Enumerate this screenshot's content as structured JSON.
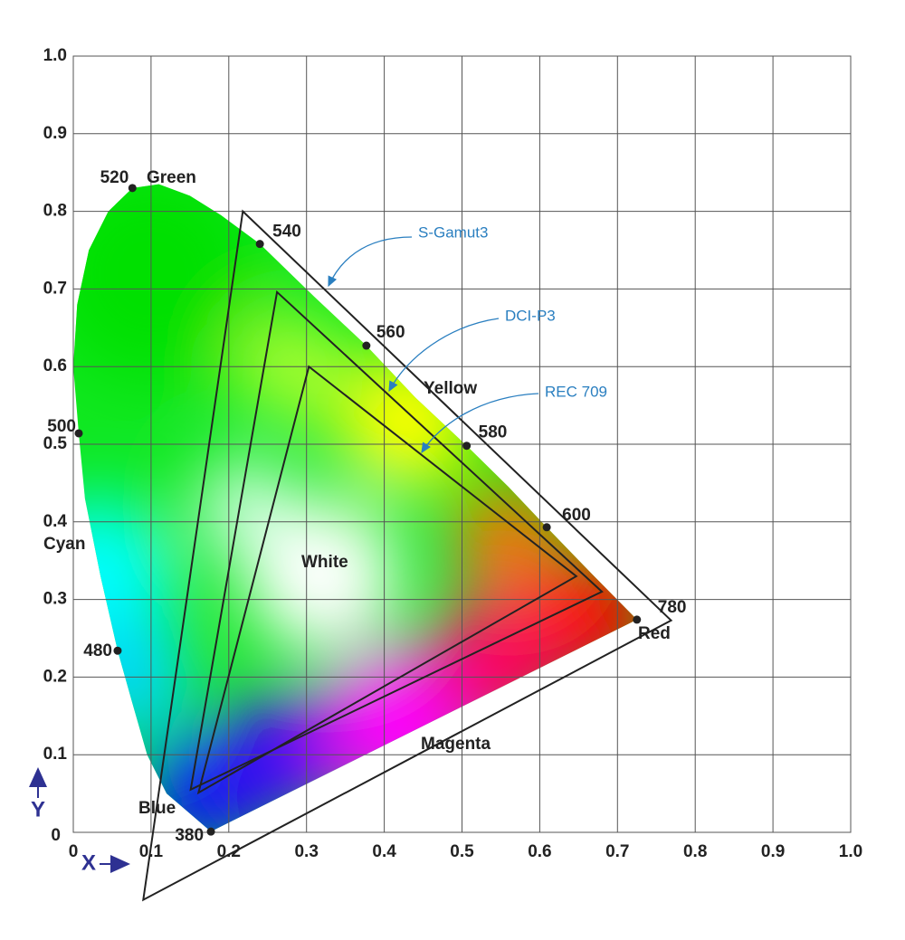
{
  "chart_data": {
    "type": "chromaticity",
    "x_label": "X",
    "y_label": "Y",
    "xlim": [
      0,
      1
    ],
    "ylim": [
      0,
      1
    ],
    "xticks": [
      0,
      0.1,
      0.2,
      0.3,
      0.4,
      0.5,
      0.6,
      0.7,
      0.8,
      0.9,
      {
        "value": 1,
        "label": "1.0"
      }
    ],
    "yticks": [
      0,
      0.1,
      0.2,
      0.3,
      0.4,
      0.5,
      0.6,
      0.7,
      0.8,
      0.9,
      {
        "value": 1,
        "label": "1.0"
      }
    ],
    "grid": true,
    "locus": {
      "labels": [
        "380",
        null,
        null,
        null,
        "480",
        null,
        null,
        "500",
        null,
        null,
        null,
        null,
        "520",
        null,
        null,
        null,
        "540",
        null,
        "560",
        null,
        "580",
        null,
        "600",
        null,
        "780"
      ],
      "x": [
        0.177,
        0.12,
        0.095,
        0.075,
        0.057,
        0.035,
        0.015,
        0.007,
        0.0,
        0.005,
        0.02,
        0.045,
        0.076,
        0.11,
        0.15,
        0.19,
        0.24,
        0.31,
        0.377,
        0.44,
        0.506,
        0.56,
        0.609,
        0.67,
        0.725
      ],
      "y": [
        0.001,
        0.05,
        0.1,
        0.17,
        0.234,
        0.33,
        0.43,
        0.514,
        0.6,
        0.68,
        0.75,
        0.8,
        0.83,
        0.835,
        0.82,
        0.795,
        0.758,
        0.69,
        0.627,
        0.56,
        0.498,
        0.445,
        0.393,
        0.33,
        0.274
      ]
    },
    "region_labels": [
      "Green",
      "Yellow",
      "Cyan",
      "White",
      "Red",
      "Magenta",
      "Blue"
    ],
    "series": [
      {
        "name": "S-Gamut3",
        "color": "#222222",
        "x": [
          0.769,
          0.218,
          0.09
        ],
        "y": [
          0.273,
          0.8,
          -0.087
        ]
      },
      {
        "name": "DCI-P3",
        "color": "#222222",
        "x": [
          0.68,
          0.262,
          0.151
        ],
        "y": [
          0.31,
          0.696,
          0.055
        ]
      },
      {
        "name": "REC 709",
        "color": "#222222",
        "x": [
          0.647,
          0.303,
          0.161
        ],
        "y": [
          0.33,
          0.6,
          0.051
        ]
      }
    ]
  }
}
